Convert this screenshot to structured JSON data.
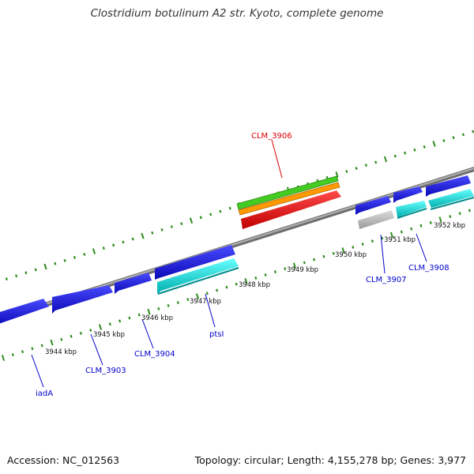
{
  "title": "Clostridium botulinum A2 str. Kyoto, complete genome",
  "footer": {
    "accession": "Accession: NC_012563",
    "summary": "Topology: circular; Length: 4,155,278 bp; Genes: 3,977"
  },
  "colors": {
    "backbone": "#8c8c8c",
    "tick": "#2e8b1e",
    "gene_forward": "#1010e0",
    "gene_cyan": "#00e0e0",
    "gene_grey": "#b4b4b4",
    "highlight": "#ee0000",
    "track_green": "#44cc22",
    "track_orange": "#ff9900",
    "label_blue": "#0000cc",
    "label_red": "#dd0000"
  },
  "scale_labels": [
    {
      "text": "3944 kbp",
      "kbp": 3944
    },
    {
      "text": "3945 kbp",
      "kbp": 3945
    },
    {
      "text": "3946 kbp",
      "kbp": 3946
    },
    {
      "text": "3947 kbp",
      "kbp": 3947
    },
    {
      "text": "3948 kbp",
      "kbp": 3948
    },
    {
      "text": "3949 kbp",
      "kbp": 3949
    },
    {
      "text": "3950 kbp",
      "kbp": 3950
    },
    {
      "text": "3951 kbp",
      "kbp": 3951
    },
    {
      "text": "3952 kbp",
      "kbp": 3952
    }
  ],
  "gene_labels": [
    {
      "text": "iadA"
    },
    {
      "text": "CLM_3903"
    },
    {
      "text": "CLM_3904"
    },
    {
      "text": "ptsI"
    },
    {
      "text": "CLM_3906"
    },
    {
      "text": "CLM_3907"
    },
    {
      "text": "CLM_3908"
    }
  ]
}
